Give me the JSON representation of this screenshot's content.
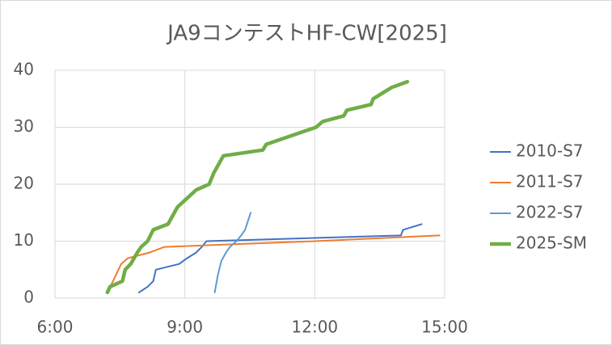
{
  "chart_data": {
    "type": "line",
    "title": "JA9コンテストHF-CW[2025]",
    "xlim": [
      6,
      15
    ],
    "xticks": [
      {
        "value": 6,
        "label": "6:00"
      },
      {
        "value": 9,
        "label": "9:00"
      },
      {
        "value": 12,
        "label": "12:00"
      },
      {
        "value": 15,
        "label": "15:00"
      }
    ],
    "ylim": [
      0,
      40
    ],
    "yticks": [
      0,
      10,
      20,
      30,
      40
    ],
    "grid": true,
    "legend": "right",
    "series": [
      {
        "name": "2010-S7",
        "color": "#4472c4",
        "line_width": 2,
        "x": [
          7.94,
          8.14,
          8.27,
          8.33,
          8.87,
          9.05,
          9.26,
          9.39,
          9.5,
          13.99,
          14.04,
          14.47
        ],
        "values": [
          1,
          2,
          3,
          5,
          6,
          7,
          8,
          9,
          10,
          11,
          12,
          13
        ]
      },
      {
        "name": "2011-S7",
        "color": "#ed7d31",
        "line_width": 2,
        "x": [
          7.21,
          7.34,
          7.53,
          7.68,
          8.18,
          8.53,
          12,
          14.88
        ],
        "values": [
          1,
          3,
          6,
          7,
          8,
          9,
          10,
          11
        ]
      },
      {
        "name": "2022-S7",
        "color": "#5b9bd5",
        "line_width": 2,
        "x": [
          9.69,
          9.76,
          9.84,
          9.95,
          10.04,
          10.19,
          10.3,
          10.39,
          10.52
        ],
        "values": [
          1,
          4,
          6.5,
          8,
          9,
          10,
          11,
          12,
          15
        ]
      },
      {
        "name": "2025-SM",
        "color": "#70ad47",
        "line_width": 4.5,
        "x": [
          7.21,
          7.27,
          7.56,
          7.62,
          7.75,
          7.9,
          7.99,
          8.14,
          8.27,
          8.61,
          8.83,
          9.26,
          9.56,
          9.67,
          9.89,
          10.8,
          10.88,
          12.03,
          12.18,
          12.67,
          12.74,
          13.3,
          13.35,
          13.78,
          14.14
        ],
        "values": [
          1,
          2,
          3,
          5,
          6,
          8,
          9,
          10,
          12,
          13,
          16,
          19,
          20,
          22,
          25,
          26,
          27,
          30,
          31,
          32,
          33,
          34,
          35,
          37,
          38
        ]
      }
    ]
  }
}
